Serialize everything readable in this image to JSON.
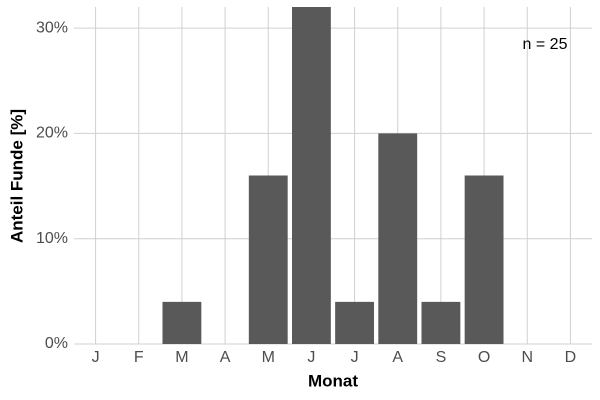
{
  "chart_data": {
    "type": "bar",
    "xlabel": "Monat",
    "ylabel": "Anteil Funde [%]",
    "annotation": "n = 25",
    "categories": [
      "J",
      "F",
      "M",
      "A",
      "M",
      "J",
      "J",
      "A",
      "S",
      "O",
      "N",
      "D"
    ],
    "values": [
      0,
      0,
      4,
      0,
      16,
      32,
      4,
      20,
      4,
      16,
      0,
      0
    ],
    "color": "#595959",
    "ylim": [
      0,
      32
    ],
    "yticks": [
      {
        "value": 0,
        "label": "0%"
      },
      {
        "value": 10,
        "label": "10%"
      },
      {
        "value": 20,
        "label": "20%"
      },
      {
        "value": 30,
        "label": "30%"
      }
    ],
    "grid": true
  }
}
